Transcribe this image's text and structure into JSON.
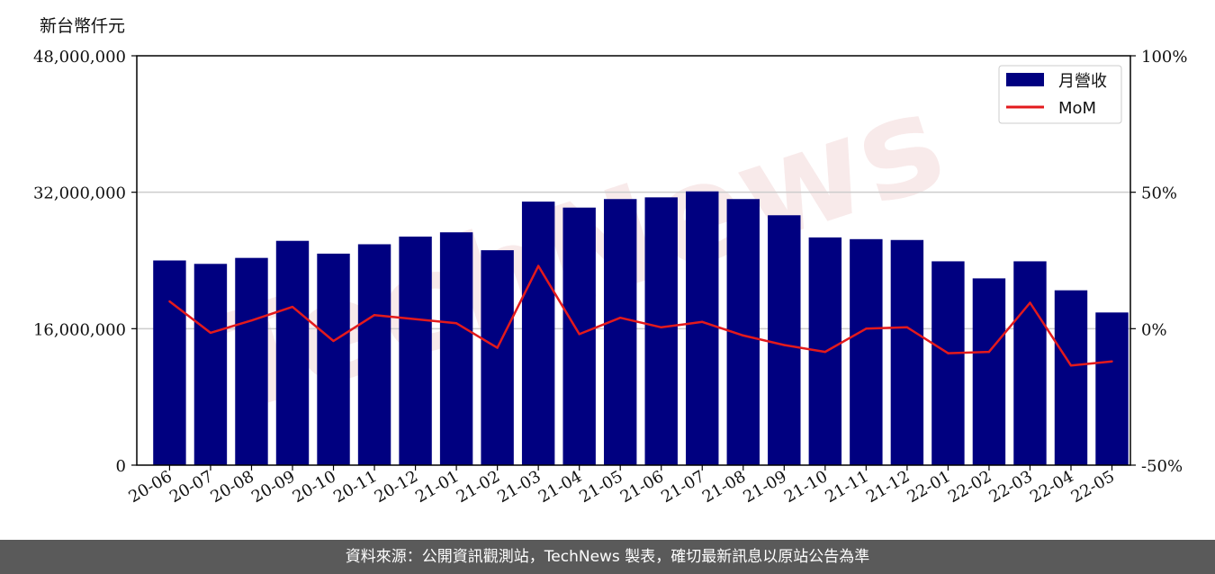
{
  "unit_label": "新台幣仟元",
  "footer_text": "資料來源：公開資訊觀測站，TechNews 製表，確切最新訊息以原站公告為準",
  "watermark_text": "TechNews",
  "colors": {
    "bar": "#000080",
    "line": "#e31a1c",
    "grid": "#cccccc",
    "footer_bg": "#5a5a5a"
  },
  "chart_data": {
    "type": "bar",
    "categories": [
      "20-06",
      "20-07",
      "20-08",
      "20-09",
      "20-10",
      "20-11",
      "20-12",
      "21-01",
      "21-02",
      "21-03",
      "21-04",
      "21-05",
      "21-06",
      "21-07",
      "21-08",
      "21-09",
      "21-10",
      "21-11",
      "21-12",
      "22-01",
      "22-02",
      "22-03",
      "22-04",
      "22-05"
    ],
    "series": [
      {
        "name": "月營收",
        "type": "bar",
        "axis": "left",
        "values": [
          24000000,
          23600000,
          24300000,
          26300000,
          24800000,
          25900000,
          26800000,
          27300000,
          25200000,
          30900000,
          30200000,
          31200000,
          31400000,
          32100000,
          31200000,
          29300000,
          26700000,
          26500000,
          26400000,
          23900000,
          21900000,
          23900000,
          20500000,
          17900000
        ]
      },
      {
        "name": "MoM",
        "type": "line",
        "axis": "right",
        "values": [
          10,
          -1.5,
          3,
          8,
          -4.5,
          5,
          3.5,
          2,
          -7,
          23,
          -2,
          4,
          0.5,
          2.5,
          -2.5,
          -6,
          -8.5,
          0,
          0.5,
          -9,
          -8.5,
          9.5,
          -13.5,
          -12
        ]
      }
    ],
    "y_left": {
      "min": 0,
      "max": 48000000,
      "ticks": [
        "0",
        "16,000,000",
        "32,000,000",
        "48,000,000"
      ],
      "tick_values": [
        0,
        16000000,
        32000000,
        48000000
      ]
    },
    "y_right": {
      "min": -50,
      "max": 100,
      "ticks": [
        "-50%",
        "0%",
        "50%",
        "100%"
      ],
      "tick_values": [
        -50,
        0,
        50,
        100
      ]
    },
    "grid": "horizontal",
    "legend": {
      "position": "top-right",
      "entries": [
        "月營收",
        "MoM"
      ]
    }
  }
}
